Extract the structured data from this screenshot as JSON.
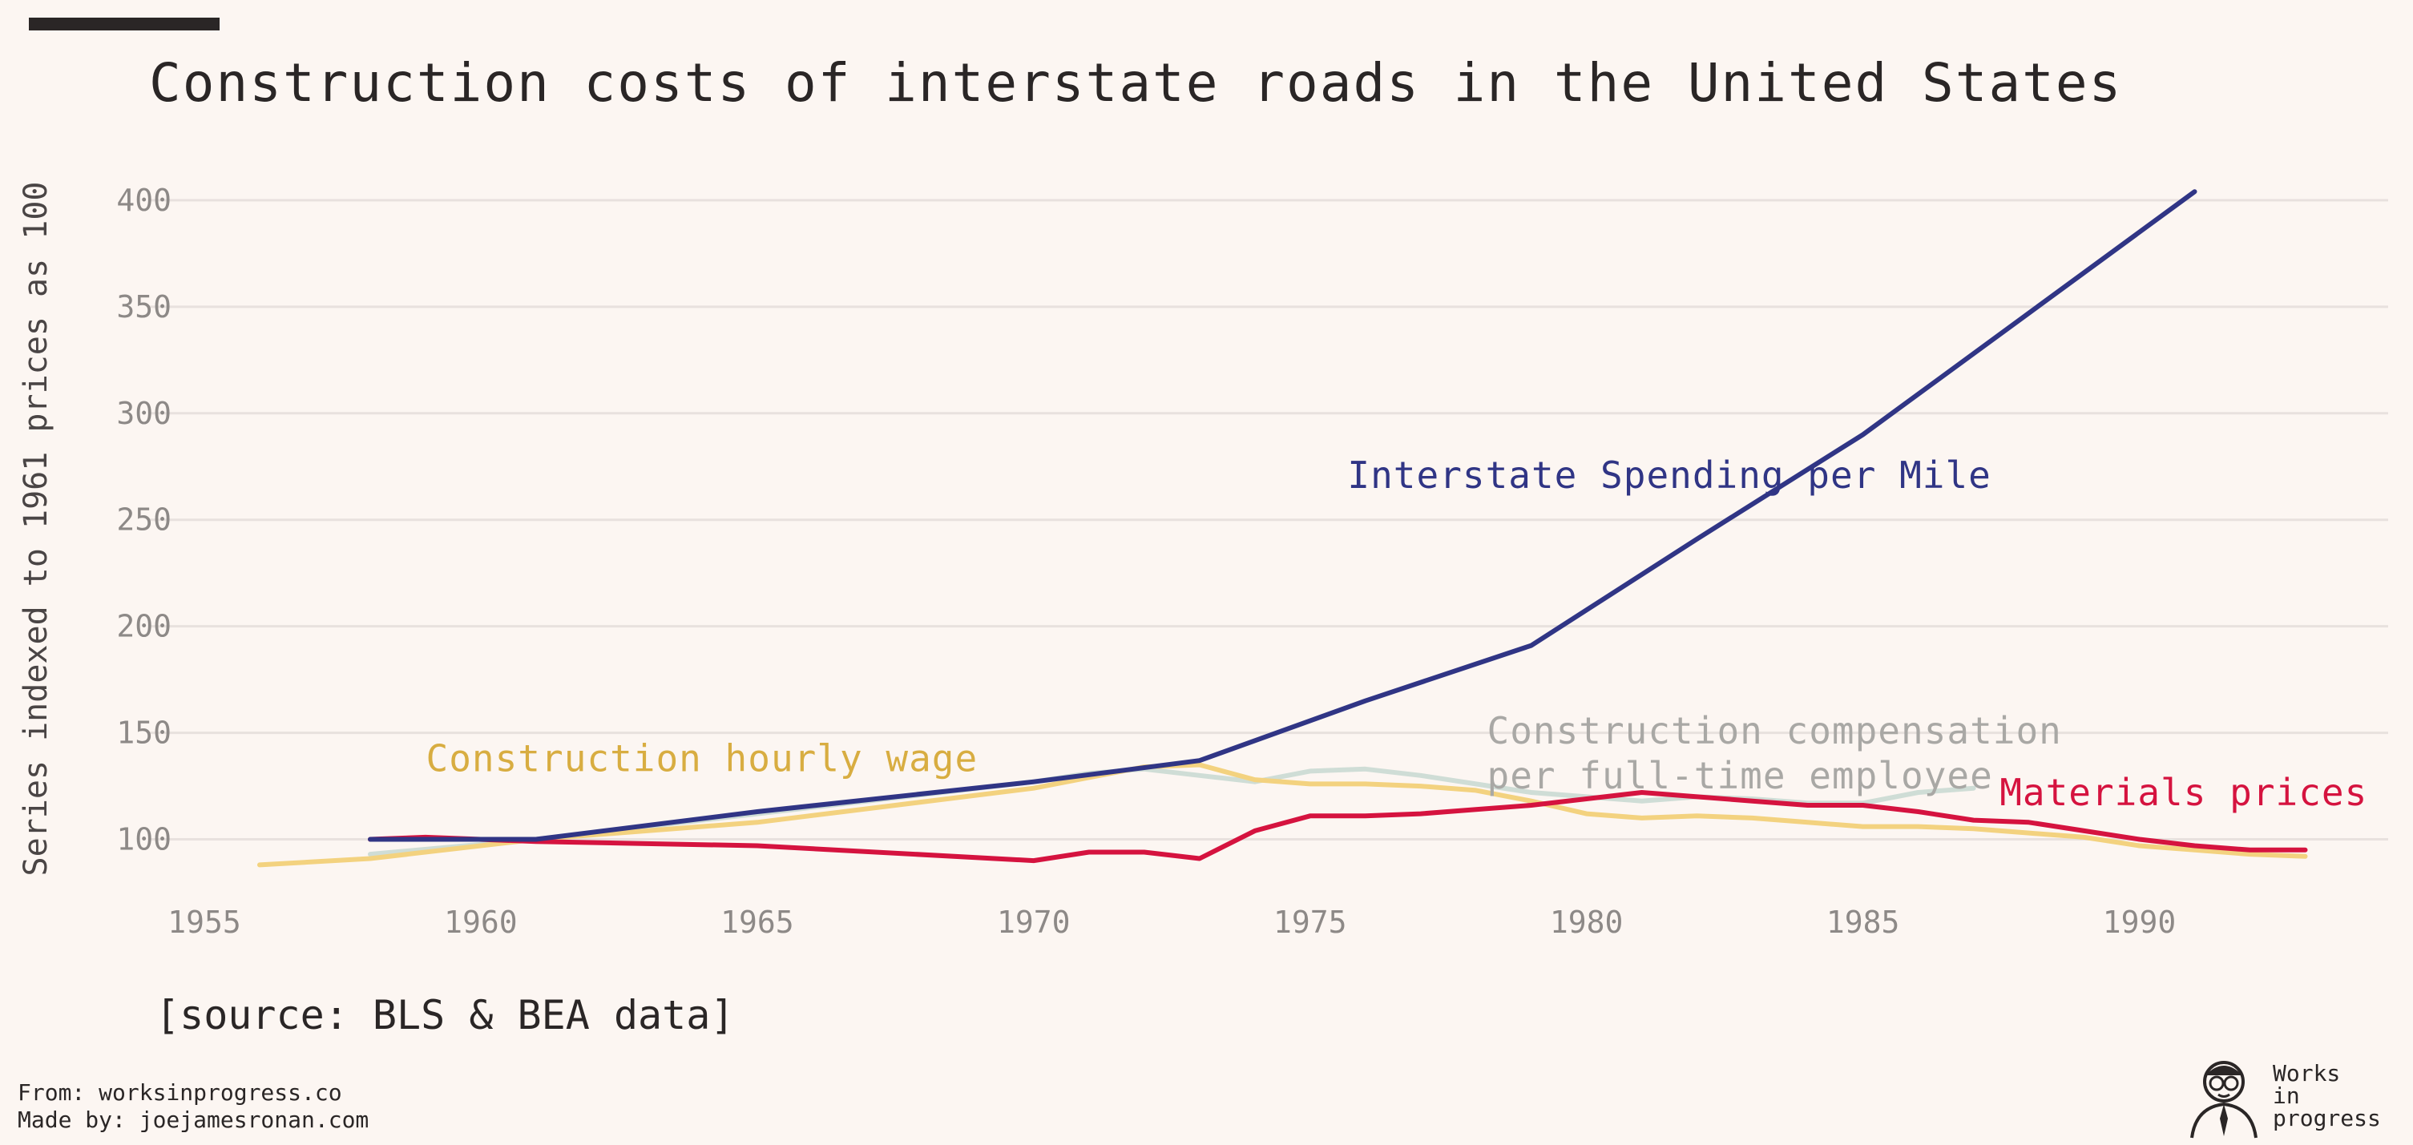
{
  "header": {
    "title": "Construction costs of interstate roads in the United States",
    "accent_color": "#2a2626"
  },
  "source": "[source: BLS & BEA data]",
  "footer": {
    "from_line": "From: worksinprogress.co",
    "made_by_line": "Made by: joejamesronan.com"
  },
  "brand": {
    "line1": "Works",
    "line2": "in",
    "line3": "progress",
    "icon": "illustrated-person-portrait-icon"
  },
  "chart_data": {
    "type": "line",
    "title": "Construction costs of interstate roads in the United States",
    "xlabel": "",
    "ylabel": "Series indexed to 1961 prices as 100",
    "xlim": [
      1954,
      1994.5
    ],
    "ylim": [
      75,
      415
    ],
    "xticks": [
      1955,
      1960,
      1965,
      1970,
      1975,
      1980,
      1985,
      1990
    ],
    "yticks": [
      100,
      150,
      200,
      250,
      300,
      350,
      400
    ],
    "grid": "horizontal",
    "series": [
      {
        "name": "Interstate Spending per Mile",
        "color": "#303585",
        "label_lines": [
          "Interstate Spending per Mile"
        ],
        "label_anchor": [
          1981.5,
          265
        ],
        "label_align": "middle",
        "points": [
          [
            1958,
            100
          ],
          [
            1961,
            100
          ],
          [
            1965,
            113
          ],
          [
            1970,
            127
          ],
          [
            1973,
            137
          ],
          [
            1976,
            165
          ],
          [
            1979,
            191
          ],
          [
            1982,
            241
          ],
          [
            1985,
            290
          ],
          [
            1988,
            347
          ],
          [
            1991,
            404
          ]
        ]
      },
      {
        "name": "Construction compensation per full-time employee",
        "color": "#cfddd6",
        "label_color": "#a9a8a5",
        "label_lines": [
          "Construction compensation",
          "per full-time employee"
        ],
        "label_anchor": [
          1978.2,
          145
        ],
        "label_align": "start",
        "points": [
          [
            1958,
            93
          ],
          [
            1961,
            100
          ],
          [
            1965,
            112
          ],
          [
            1970,
            127
          ],
          [
            1971,
            131
          ],
          [
            1972,
            133
          ],
          [
            1973,
            130
          ],
          [
            1974,
            127
          ],
          [
            1975,
            132
          ],
          [
            1976,
            133
          ],
          [
            1977,
            130
          ],
          [
            1978,
            126
          ],
          [
            1979,
            122
          ],
          [
            1980,
            120
          ],
          [
            1981,
            118
          ],
          [
            1982,
            120
          ],
          [
            1983,
            119
          ],
          [
            1984,
            117
          ],
          [
            1985,
            117
          ],
          [
            1986,
            122
          ],
          [
            1987,
            124
          ]
        ]
      },
      {
        "name": "Construction hourly wage",
        "color": "#f3d27f",
        "label_color": "#d8ad41",
        "label_lines": [
          "Construction hourly wage"
        ],
        "label_anchor": [
          1964,
          132
        ],
        "label_align": "middle",
        "points": [
          [
            1956,
            88
          ],
          [
            1958,
            91
          ],
          [
            1961,
            100
          ],
          [
            1963,
            104
          ],
          [
            1965,
            108
          ],
          [
            1970,
            124
          ],
          [
            1972,
            134
          ],
          [
            1973,
            135
          ],
          [
            1974,
            128
          ],
          [
            1975,
            126
          ],
          [
            1976,
            126
          ],
          [
            1977,
            125
          ],
          [
            1978,
            123
          ],
          [
            1979,
            118
          ],
          [
            1980,
            112
          ],
          [
            1981,
            110
          ],
          [
            1982,
            111
          ],
          [
            1983,
            110
          ],
          [
            1984,
            108
          ],
          [
            1985,
            106
          ],
          [
            1986,
            106
          ],
          [
            1987,
            105
          ],
          [
            1988,
            103
          ],
          [
            1989,
            101
          ],
          [
            1990,
            97
          ],
          [
            1991,
            95
          ],
          [
            1992,
            93
          ],
          [
            1993,
            92
          ]
        ]
      },
      {
        "name": "Materials prices",
        "color": "#d5133f",
        "label_color": "#d5133f",
        "label_lines": [
          "Materials prices"
        ],
        "label_anchor": [
          1990.8,
          116
        ],
        "label_align": "middle",
        "points": [
          [
            1958,
            100
          ],
          [
            1959,
            101
          ],
          [
            1961,
            99
          ],
          [
            1965,
            97
          ],
          [
            1970,
            90
          ],
          [
            1971,
            94
          ],
          [
            1972,
            94
          ],
          [
            1973,
            91
          ],
          [
            1974,
            104
          ],
          [
            1975,
            111
          ],
          [
            1976,
            111
          ],
          [
            1977,
            112
          ],
          [
            1978,
            114
          ],
          [
            1979,
            116
          ],
          [
            1980,
            119
          ],
          [
            1981,
            122
          ],
          [
            1982,
            120
          ],
          [
            1983,
            118
          ],
          [
            1984,
            116
          ],
          [
            1985,
            116
          ],
          [
            1986,
            113
          ],
          [
            1987,
            109
          ],
          [
            1988,
            108
          ],
          [
            1989,
            104
          ],
          [
            1990,
            100
          ],
          [
            1991,
            97
          ],
          [
            1992,
            95
          ],
          [
            1993,
            95
          ]
        ]
      }
    ]
  }
}
